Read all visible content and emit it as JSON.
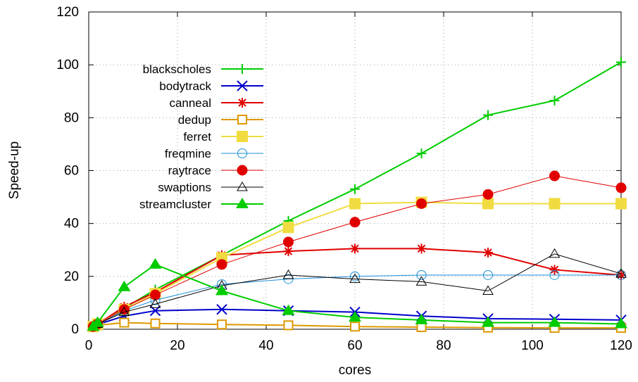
{
  "chart_data": {
    "type": "line",
    "title": "",
    "xlabel": "cores",
    "ylabel": "Speed-up",
    "xlim": [
      0,
      120
    ],
    "ylim": [
      0,
      120
    ],
    "xticks": [
      "0",
      "20",
      "40",
      "60",
      "80",
      "100",
      "120"
    ],
    "yticks": [
      "0",
      "20",
      "40",
      "60",
      "80",
      "100",
      "120"
    ],
    "grid": true,
    "legend_position": "top-left",
    "x": [
      1,
      2,
      8,
      15,
      30,
      45,
      60,
      75,
      90,
      105,
      120
    ],
    "series": [
      {
        "name": "blackscholes",
        "color": "#00cc00",
        "marker": "plus",
        "values": [
          1,
          2,
          8,
          15,
          28,
          41,
          53,
          66.5,
          81,
          86.5,
          101
        ]
      },
      {
        "name": "bodytrack",
        "color": "#0000cc",
        "marker": "cross",
        "values": [
          1,
          1.8,
          5,
          7,
          7.5,
          7,
          6.5,
          5,
          4,
          3.8,
          3.5
        ]
      },
      {
        "name": "canneal",
        "color": "#e00000",
        "marker": "star",
        "values": [
          1,
          2,
          8.5,
          14,
          28,
          29.5,
          30.5,
          30.5,
          29,
          22.5,
          20.5
        ]
      },
      {
        "name": "dedup",
        "color": "#dd9900",
        "marker": "square-open",
        "values": [
          1,
          1.5,
          2.5,
          2.2,
          1.8,
          1.5,
          1,
          0.8,
          0.6,
          0.5,
          0.5
        ]
      },
      {
        "name": "ferret",
        "color": "#f0dc40",
        "marker": "square-filled",
        "values": [
          1,
          2,
          7.5,
          13.5,
          27,
          38.5,
          47.5,
          48,
          47.5,
          47.5,
          47.5
        ]
      },
      {
        "name": "freqmine",
        "color": "#1a8fd6",
        "marker": "circle-open",
        "values": [
          1,
          2,
          7,
          11,
          17,
          19,
          20,
          20.5,
          20.5,
          20.5,
          20.5
        ]
      },
      {
        "name": "raytrace",
        "color": "#e00000",
        "marker": "circle-filled",
        "values": [
          1,
          2,
          7.5,
          13,
          24.5,
          33,
          40.5,
          47.5,
          51,
          58,
          53.5
        ]
      },
      {
        "name": "swaptions",
        "color": "#000000",
        "marker": "triangle-open",
        "values": [
          1,
          2,
          6.5,
          9.5,
          16.5,
          20.5,
          19,
          18,
          14.5,
          28.5,
          21
        ]
      },
      {
        "name": "streamcluster",
        "color": "#00cc00",
        "marker": "triangle-filled",
        "values": [
          1,
          2.5,
          16,
          24.5,
          14.5,
          7,
          4.5,
          3.5,
          2.5,
          2.5,
          2
        ]
      }
    ]
  }
}
